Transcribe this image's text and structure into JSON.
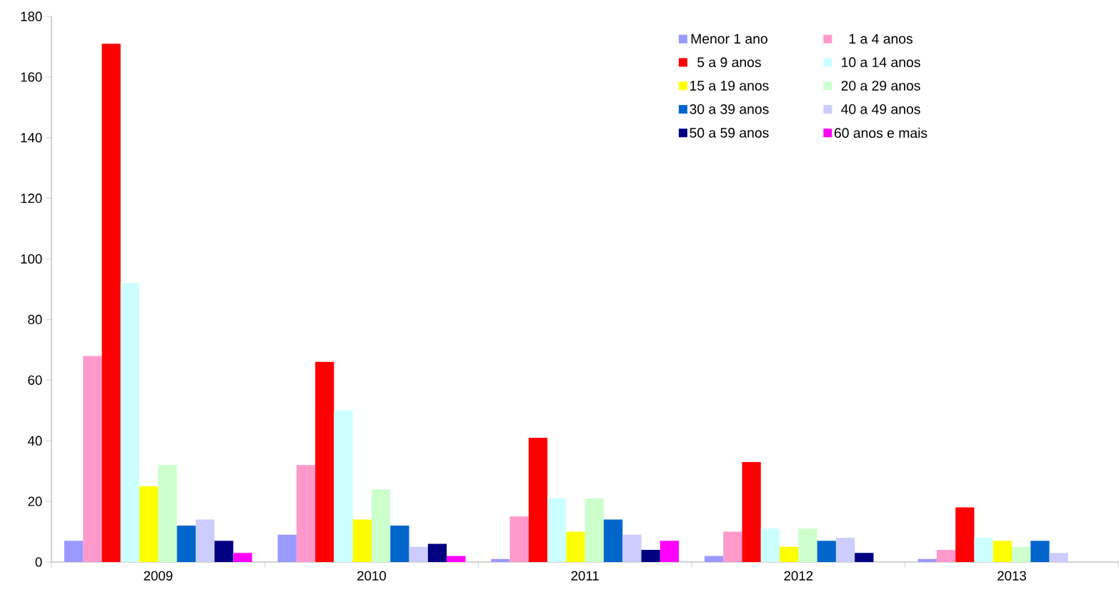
{
  "chart_data": {
    "type": "bar",
    "categories": [
      "2009",
      "2010",
      "2011",
      "2012",
      "2013"
    ],
    "series": [
      {
        "name": "Menor 1 ano",
        "color": "#9999ff",
        "values": [
          7,
          9,
          1,
          2,
          1
        ]
      },
      {
        "name": "1 a 4 anos",
        "color": "#ff99cc",
        "values": [
          68,
          32,
          15,
          10,
          4
        ]
      },
      {
        "name": "5 a 9 anos",
        "color": "#ff0000",
        "values": [
          171,
          66,
          41,
          33,
          18
        ]
      },
      {
        "name": "10 a 14 anos",
        "color": "#ccffff",
        "values": [
          92,
          50,
          21,
          11,
          8
        ]
      },
      {
        "name": "15 a 19 anos",
        "color": "#ffff00",
        "values": [
          25,
          14,
          10,
          5,
          7
        ]
      },
      {
        "name": "20 a 29 anos",
        "color": "#ccffcc",
        "values": [
          32,
          24,
          21,
          11,
          5
        ]
      },
      {
        "name": "30 a 39 anos",
        "color": "#0066cc",
        "values": [
          12,
          12,
          14,
          7,
          7
        ]
      },
      {
        "name": "40 a 49 anos",
        "color": "#ccccff",
        "values": [
          14,
          5,
          9,
          8,
          3
        ]
      },
      {
        "name": "50 a 59 anos",
        "color": "#000080",
        "values": [
          7,
          6,
          4,
          3,
          null
        ]
      },
      {
        "name": "60 anos e mais",
        "color": "#ff00ff",
        "values": [
          3,
          2,
          7,
          null,
          null
        ]
      }
    ],
    "ylim": [
      0,
      180
    ],
    "yticks": [
      0,
      20,
      40,
      60,
      80,
      100,
      120,
      140,
      160,
      180
    ],
    "legend": "top right"
  }
}
